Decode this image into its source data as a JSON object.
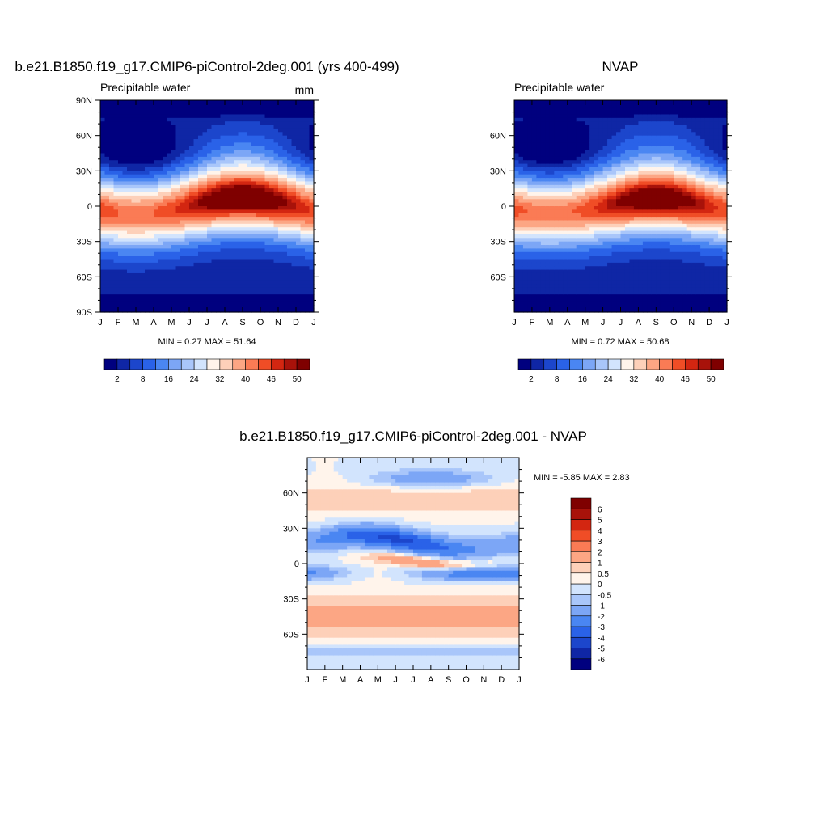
{
  "chart_data": [
    {
      "type": "heatmap",
      "title": "b.e21.B1850.f19_g17.CMIP6-piControl-2deg.001 (yrs 400-499)",
      "left_label": "Precipitable water",
      "right_label": "mm",
      "x_ticklabels": [
        "J",
        "F",
        "M",
        "A",
        "M",
        "J",
        "J",
        "A",
        "S",
        "O",
        "N",
        "D",
        "J"
      ],
      "y_ticks": [
        90,
        60,
        30,
        0,
        -30,
        -60,
        -90
      ],
      "y_ticklabels": [
        "90N",
        "60N",
        "30N",
        "0",
        "30S",
        "60S",
        "90S"
      ],
      "ylim": [
        -90,
        90
      ],
      "stat_text": "MIN =   0.27 MAX =  51.64",
      "min": 0.27,
      "max": 51.64,
      "colorbar": {
        "levels": [
          2,
          5,
          8,
          12,
          16,
          20,
          24,
          28,
          32,
          36,
          40,
          43,
          46,
          48,
          50
        ],
        "labels": [
          "2",
          "8",
          "16",
          "24",
          "32",
          "40",
          "46",
          "50"
        ],
        "colors": [
          "#00007f",
          "#0f26a5",
          "#1c46cc",
          "#2a62e8",
          "#4a86f2",
          "#7ca6f6",
          "#a9c6fa",
          "#d2e4fd",
          "#fff4eb",
          "#fdd0b9",
          "#fca684",
          "#fa7b55",
          "#f04d26",
          "#d32611",
          "#a8120a",
          "#7f0000"
        ]
      },
      "field": {
        "equator_amp": 7,
        "equator_phase": 8,
        "peak_max": 51.64,
        "peak_min": 0.27
      }
    },
    {
      "type": "heatmap",
      "title": "NVAP",
      "left_label": "Precipitable water",
      "x_ticklabels": [
        "J",
        "F",
        "M",
        "A",
        "M",
        "J",
        "J",
        "A",
        "S",
        "O",
        "N",
        "D",
        "J"
      ],
      "y_ticks": [
        60,
        30,
        0,
        -30,
        -60
      ],
      "y_ticklabels": [
        "60N",
        "30N",
        "0",
        "30S",
        "60S"
      ],
      "ylim": [
        -90,
        90
      ],
      "stat_text": "MIN =   0.72 MAX =  50.68",
      "min": 0.72,
      "max": 50.68,
      "colorbar": {
        "levels": [
          2,
          5,
          8,
          12,
          16,
          20,
          24,
          28,
          32,
          36,
          40,
          43,
          46,
          48,
          50
        ],
        "labels": [
          "2",
          "8",
          "16",
          "24",
          "32",
          "40",
          "46",
          "50"
        ],
        "colors": [
          "#00007f",
          "#0f26a5",
          "#1c46cc",
          "#2a62e8",
          "#4a86f2",
          "#7ca6f6",
          "#a9c6fa",
          "#d2e4fd",
          "#fff4eb",
          "#fdd0b9",
          "#fca684",
          "#fa7b55",
          "#f04d26",
          "#d32611",
          "#a8120a",
          "#7f0000"
        ]
      },
      "field": {
        "equator_amp": 6,
        "equator_phase": 8,
        "peak_max": 50.68,
        "peak_min": 0.72
      }
    },
    {
      "type": "heatmap",
      "title": "b.e21.B1850.f19_g17.CMIP6-piControl-2deg.001 - NVAP",
      "x_ticklabels": [
        "J",
        "F",
        "M",
        "A",
        "M",
        "J",
        "J",
        "A",
        "S",
        "O",
        "N",
        "D",
        "J"
      ],
      "y_ticks": [
        60,
        30,
        0,
        -30,
        -60
      ],
      "y_ticklabels": [
        "60N",
        "30N",
        "0",
        "30S",
        "60S"
      ],
      "ylim": [
        -90,
        90
      ],
      "stat_text": "MIN =  -5.85 MAX =   2.83",
      "min": -5.85,
      "max": 2.83,
      "colorbar": {
        "levels": [
          -6,
          -5,
          -4,
          -3,
          -2,
          -1,
          -0.5,
          0,
          0.5,
          1,
          2,
          3,
          4,
          5,
          6
        ],
        "labels": [
          "-6",
          "-5",
          "-4",
          "-3",
          "-2",
          "-1",
          "-0.5",
          "0",
          "0.5",
          "1",
          "2",
          "3",
          "4",
          "5",
          "6"
        ],
        "colors": [
          "#00007f",
          "#0f26a5",
          "#1c46cc",
          "#2a62e8",
          "#4a86f2",
          "#7ca6f6",
          "#a9c6fa",
          "#d2e4fd",
          "#fff4eb",
          "#fdd0b9",
          "#fca684",
          "#fa7b55",
          "#f04d26",
          "#d32611",
          "#a8120a",
          "#7f0000"
        ]
      }
    }
  ]
}
